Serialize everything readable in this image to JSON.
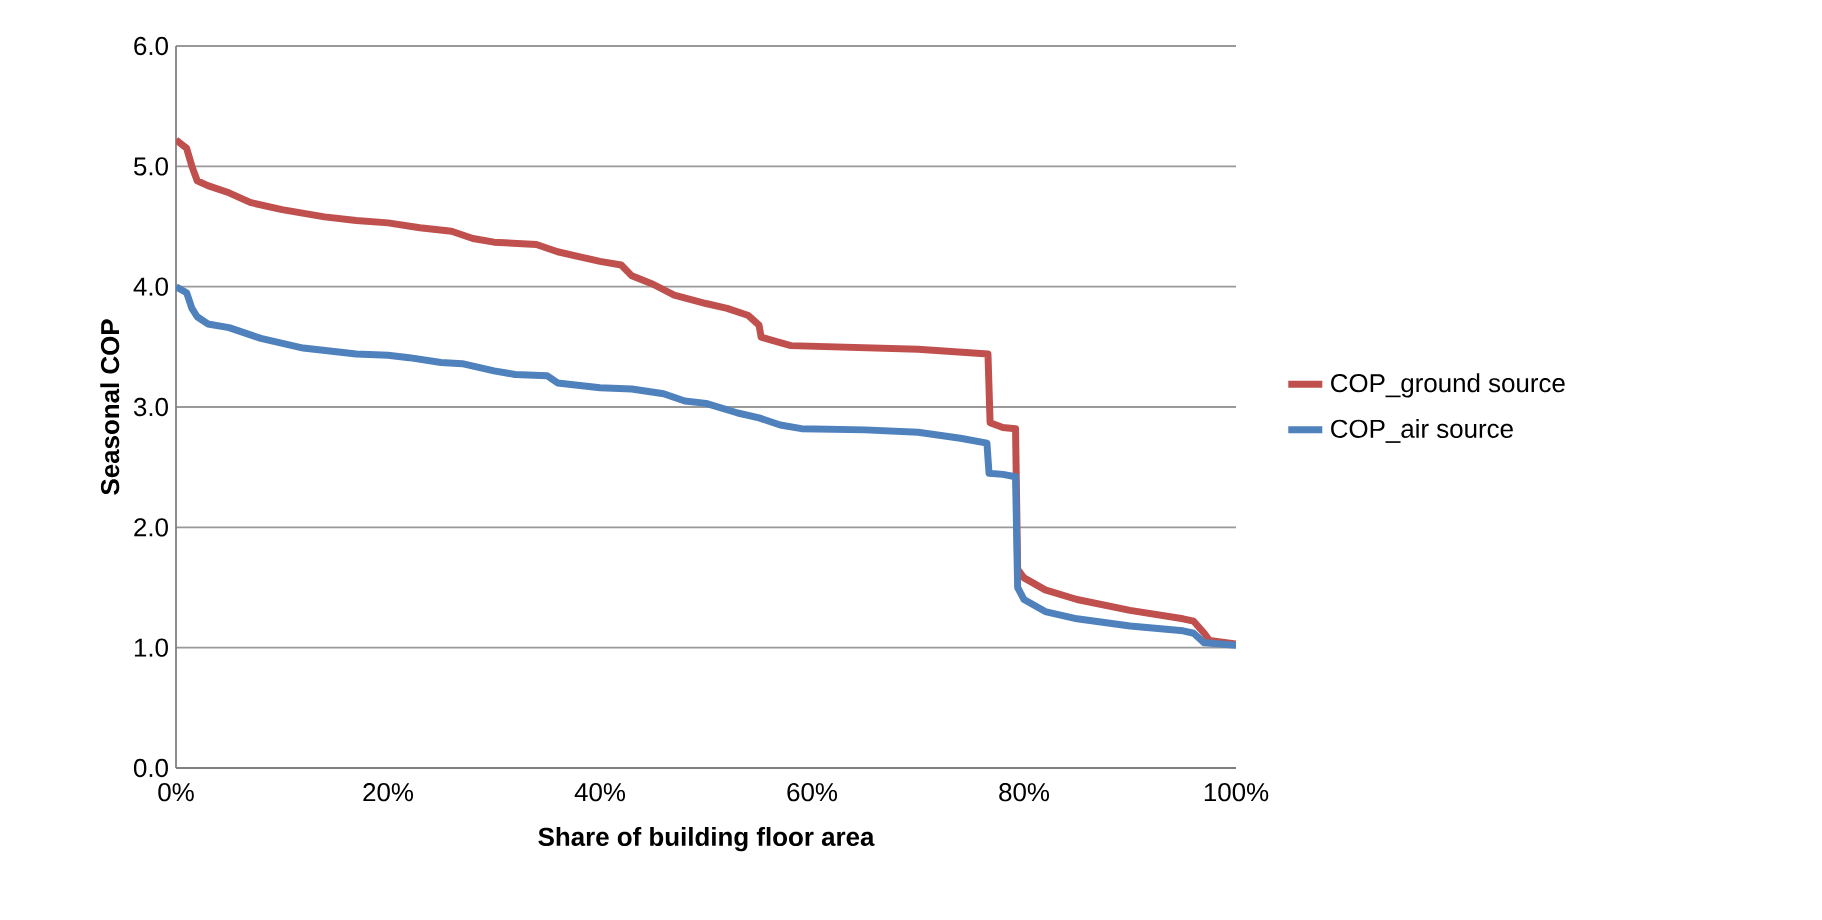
{
  "chart_data": {
    "type": "line",
    "xlabel": "Share of building floor area",
    "ylabel": "Seasonal COP",
    "xlim": [
      0,
      100
    ],
    "xticks": [
      {
        "value": 0,
        "label": "0%"
      },
      {
        "value": 20,
        "label": "20%"
      },
      {
        "value": 40,
        "label": "40%"
      },
      {
        "value": 60,
        "label": "60%"
      },
      {
        "value": 80,
        "label": "80%"
      },
      {
        "value": 100,
        "label": "100%"
      }
    ],
    "ylim": [
      0,
      6
    ],
    "yticks": [
      {
        "value": 0,
        "label": "0.0"
      },
      {
        "value": 1,
        "label": "1.0"
      },
      {
        "value": 2,
        "label": "2.0"
      },
      {
        "value": 3,
        "label": "3.0"
      },
      {
        "value": 4,
        "label": "4.0"
      },
      {
        "value": 5,
        "label": "5.0"
      },
      {
        "value": 6,
        "label": "6.0"
      }
    ],
    "grid": "y",
    "legend": "right",
    "marker": "none",
    "line_style": "solid",
    "series": [
      {
        "name": "COP_ground source",
        "color": "#c0504d",
        "x": [
          0,
          1,
          1.5,
          2,
          3,
          5,
          7,
          10,
          14,
          17,
          20,
          23,
          26,
          28,
          30,
          34,
          36,
          38,
          40,
          42,
          43,
          45,
          47,
          50,
          52,
          54,
          55,
          55.2,
          56,
          58,
          62,
          70,
          76.6,
          76.8,
          78,
          79.2,
          79.4,
          80,
          82,
          85,
          90,
          95,
          96,
          97,
          97.5,
          100
        ],
        "values": [
          5.22,
          5.15,
          5.0,
          4.88,
          4.84,
          4.78,
          4.7,
          4.64,
          4.58,
          4.55,
          4.53,
          4.49,
          4.46,
          4.4,
          4.37,
          4.35,
          4.29,
          4.25,
          4.21,
          4.18,
          4.09,
          4.02,
          3.93,
          3.86,
          3.82,
          3.76,
          3.68,
          3.58,
          3.56,
          3.51,
          3.5,
          3.48,
          3.44,
          2.87,
          2.83,
          2.82,
          1.65,
          1.58,
          1.48,
          1.4,
          1.31,
          1.24,
          1.22,
          1.12,
          1.06,
          1.03
        ]
      },
      {
        "name": "COP_air source",
        "color": "#4f81bd",
        "x": [
          0,
          1,
          1.5,
          2,
          3,
          5,
          8,
          12,
          17,
          20,
          22,
          25,
          27,
          30,
          32,
          35,
          36,
          40,
          43,
          46,
          48,
          50,
          53,
          55,
          57,
          59,
          65,
          70,
          74,
          76.5,
          76.7,
          78,
          79.2,
          79.4,
          80,
          82,
          85,
          90,
          95,
          96,
          97,
          100
        ],
        "values": [
          4.0,
          3.95,
          3.82,
          3.75,
          3.69,
          3.66,
          3.57,
          3.49,
          3.44,
          3.43,
          3.41,
          3.37,
          3.36,
          3.3,
          3.27,
          3.26,
          3.2,
          3.16,
          3.15,
          3.11,
          3.05,
          3.03,
          2.95,
          2.91,
          2.85,
          2.82,
          2.81,
          2.79,
          2.74,
          2.7,
          2.45,
          2.44,
          2.42,
          1.5,
          1.4,
          1.3,
          1.24,
          1.18,
          1.14,
          1.12,
          1.04,
          1.02
        ]
      }
    ]
  }
}
